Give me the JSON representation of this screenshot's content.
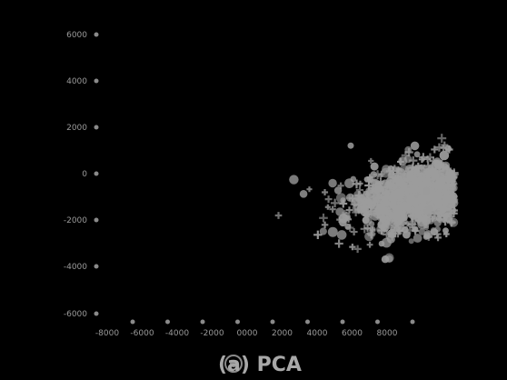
{
  "chart_data": {
    "type": "scatter",
    "caption": "(a) PCA",
    "xlabel": "",
    "ylabel": "",
    "xlim": [
      -8,
      4
    ],
    "ylim": [
      -6,
      7
    ],
    "grid": false,
    "legend": "none",
    "x_ticks": [
      "-8000",
      "-6000",
      "-4000",
      "-2000",
      "0000",
      "2000",
      "4000",
      "6000",
      "8000"
    ],
    "y_ticks": [
      "6000",
      "4000",
      "2000",
      "0",
      "-2000",
      "-4000",
      "-6000"
    ],
    "point_color": "#9c9c9c",
    "point_count": 1400,
    "cloud": {
      "center_x": 3.5,
      "center_y": -0.45,
      "spread_x": 1.45,
      "spread_y": 0.85,
      "correlation": 0.35
    }
  }
}
